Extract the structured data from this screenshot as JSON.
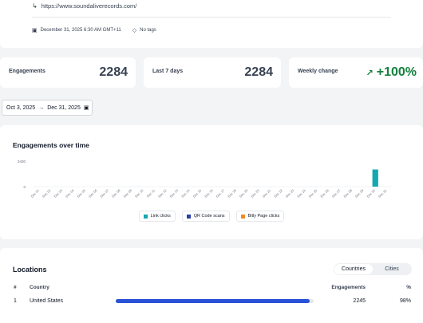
{
  "link": {
    "destination_url": "https://www.soundaliverecords.com/",
    "created": "December 31, 2025 6:30 AM GMT+11",
    "tags": "No tags"
  },
  "metrics": {
    "engagements": {
      "label": "Engagements",
      "value": "2284"
    },
    "last7": {
      "label": "Last 7 days",
      "value": "2284"
    },
    "weekly": {
      "label": "Weekly change",
      "value": "+100%"
    }
  },
  "date_range": {
    "start": "Oct 3, 2025",
    "end": "Dec 31, 2025"
  },
  "chart": {
    "title": "Engagements over time"
  },
  "chart_data": {
    "type": "bar",
    "title": "Engagements over time",
    "categories": [
      "Dec 01",
      "Dec 02",
      "Dec 03",
      "Dec 04",
      "Dec 05",
      "Dec 06",
      "Dec 07",
      "Dec 08",
      "Dec 09",
      "Dec 10",
      "Dec 11",
      "Dec 12",
      "Dec 13",
      "Dec 14",
      "Dec 15",
      "Dec 16",
      "Dec 17",
      "Dec 18",
      "Dec 19",
      "Dec 20",
      "Dec 21",
      "Dec 22",
      "Dec 23",
      "Dec 24",
      "Dec 25",
      "Dec 26",
      "Dec 27",
      "Dec 28",
      "Dec 29",
      "Dec 30",
      "Dec 31"
    ],
    "yticks": [
      "3400",
      "0"
    ],
    "ylim": [
      0,
      3400
    ],
    "series": [
      {
        "name": "Link clicks",
        "color": "#14a8b0",
        "values": [
          0,
          0,
          0,
          0,
          0,
          0,
          0,
          0,
          0,
          0,
          0,
          0,
          0,
          0,
          0,
          0,
          0,
          0,
          0,
          0,
          0,
          0,
          0,
          0,
          0,
          0,
          0,
          0,
          0,
          2284,
          0
        ]
      },
      {
        "name": "QR Code scans",
        "color": "#2a3fa8",
        "values": [
          0,
          0,
          0,
          0,
          0,
          0,
          0,
          0,
          0,
          0,
          0,
          0,
          0,
          0,
          0,
          0,
          0,
          0,
          0,
          0,
          0,
          0,
          0,
          0,
          0,
          0,
          0,
          0,
          0,
          0,
          0
        ]
      },
      {
        "name": "Bitly Page clicks",
        "color": "#f08a24",
        "values": [
          0,
          0,
          0,
          0,
          0,
          0,
          0,
          0,
          0,
          0,
          0,
          0,
          0,
          0,
          0,
          0,
          0,
          0,
          0,
          0,
          0,
          0,
          0,
          0,
          0,
          0,
          0,
          0,
          0,
          0,
          0
        ]
      }
    ],
    "legend_position": "bottom-center",
    "grid": false
  },
  "locations": {
    "title": "Locations",
    "toggle": [
      "Countries",
      "Cities"
    ],
    "headers": {
      "rank": "#",
      "country": "Country",
      "engagements": "Engagements",
      "pct": "%"
    },
    "rows": [
      {
        "rank": "1",
        "country": "United States",
        "engagements": "2245",
        "pct": "98%",
        "fraction": 0.98
      }
    ]
  },
  "colors": {
    "accent_blue": "#2a52d6",
    "positive_green": "#15803d"
  }
}
